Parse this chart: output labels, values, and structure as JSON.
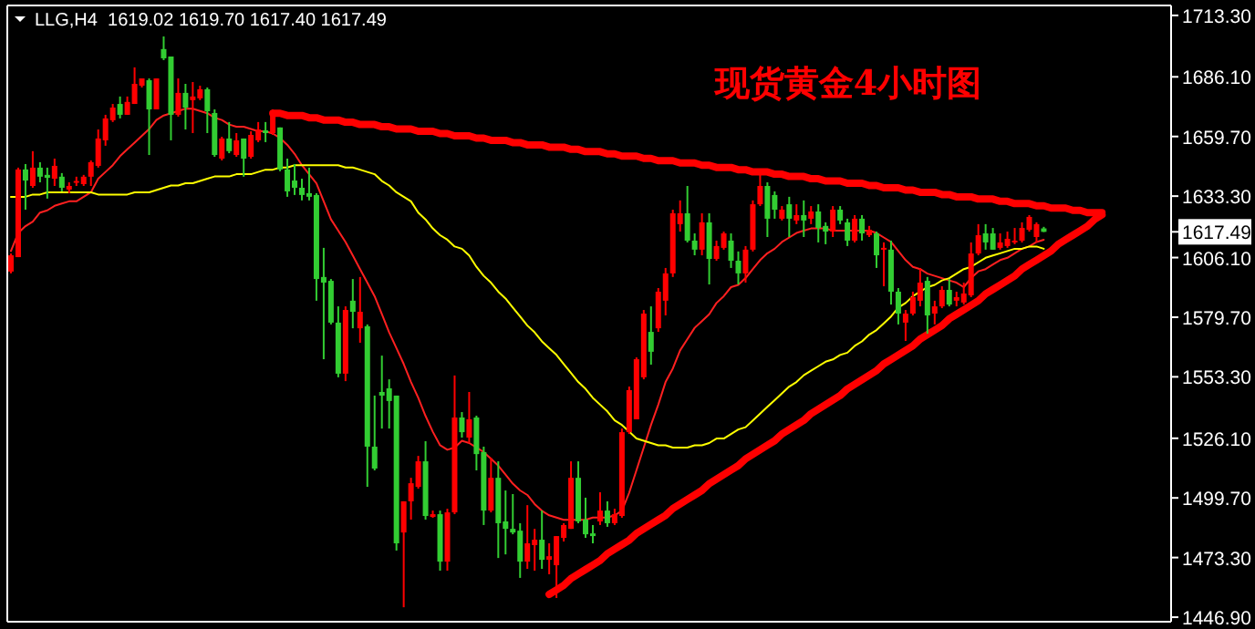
{
  "chart_data": {
    "type": "candlestick",
    "title": "现货黄金4小时图",
    "subtitle": "LLG,H4  1619.02 1619.70 1617.40 1617.49",
    "categories": [
      null,
      null,
      null,
      null,
      null,
      null,
      null,
      null,
      null,
      null,
      null,
      null,
      null,
      null,
      null,
      null,
      null,
      null,
      null,
      null,
      null,
      null,
      null,
      null,
      null,
      null,
      null,
      null,
      null,
      null,
      null,
      null,
      null,
      null,
      null,
      null,
      null,
      null,
      null,
      null,
      null,
      null,
      null,
      null,
      null,
      null,
      null,
      null,
      null,
      null,
      null,
      null,
      null,
      null,
      null,
      null,
      null,
      null,
      null,
      null,
      null,
      null,
      null,
      null,
      null,
      null,
      null,
      null,
      null,
      null,
      null,
      null,
      null,
      null,
      null,
      null,
      null,
      null,
      null,
      null,
      null,
      null,
      null,
      null,
      null,
      null,
      null,
      null,
      null,
      null,
      null,
      null,
      null,
      null,
      null,
      null,
      null,
      null,
      null,
      null,
      null,
      null,
      null,
      null,
      null,
      null,
      null,
      null,
      null,
      null,
      null,
      null,
      null,
      null,
      null,
      null,
      null,
      null,
      null,
      null,
      null,
      null,
      null,
      null,
      null,
      null,
      null,
      null,
      null,
      null,
      null,
      null,
      null,
      null,
      null,
      null,
      null,
      null,
      null,
      null,
      null,
      null,
      null,
      null,
      null,
      null,
      null,
      null,
      null,
      null,
      null,
      null,
      null,
      null,
      null,
      null,
      null,
      null,
      null,
      null
    ],
    "ohlc": [
      [
        1599.9,
        1607.9,
        1599.1,
        1607.1
      ],
      [
        1606.3,
        1645.9,
        1606.3,
        1645.1
      ],
      [
        1645.1,
        1647.5,
        1627.3,
        1640.2
      ],
      [
        1637.8,
        1653.2,
        1637.0,
        1645.9
      ],
      [
        1645.9,
        1648.3,
        1639.4,
        1641.9
      ],
      [
        1642.7,
        1645.9,
        1632.2,
        1641.4
      ],
      [
        1641.0,
        1649.9,
        1637.8,
        1646.7
      ],
      [
        1641.9,
        1643.5,
        1635.4,
        1637.0
      ],
      [
        1636.2,
        1639.4,
        1634.6,
        1637.8
      ],
      [
        1639.8,
        1641.9,
        1637.8,
        1640.0
      ],
      [
        1638.6,
        1642.7,
        1637.8,
        1641.9
      ],
      [
        1641.9,
        1649.1,
        1637.8,
        1648.3
      ],
      [
        1646.7,
        1662.8,
        1645.9,
        1658.8
      ],
      [
        1658.0,
        1669.3,
        1655.6,
        1667.7
      ],
      [
        1666.9,
        1674.1,
        1666.1,
        1672.5
      ],
      [
        1674.1,
        1677.4,
        1667.7,
        1669.3
      ],
      [
        1669.3,
        1677.4,
        1669.3,
        1675.0
      ],
      [
        1674.1,
        1690.3,
        1674.1,
        1683.0
      ],
      [
        1682.2,
        1685.4,
        1681.4,
        1685.4
      ],
      [
        1684.6,
        1685.4,
        1651.5,
        1671.7
      ],
      [
        1671.7,
        1685.4,
        1671.7,
        1685.4
      ],
      [
        1698.4,
        1704.0,
        1693.5,
        1694.3
      ],
      [
        1695.1,
        1695.1,
        1658.0,
        1669.3
      ],
      [
        1669.3,
        1685.4,
        1668.5,
        1679.0
      ],
      [
        1679.0,
        1683.0,
        1662.8,
        1672.5
      ],
      [
        1675.8,
        1683.8,
        1661.2,
        1677.4
      ],
      [
        1676.6,
        1682.2,
        1675.8,
        1680.6
      ],
      [
        1680.6,
        1681.4,
        1661.2,
        1670.9
      ],
      [
        1670.1,
        1671.7,
        1650.7,
        1651.5
      ],
      [
        1649.9,
        1659.6,
        1649.1,
        1658.8
      ],
      [
        1658.8,
        1666.1,
        1652.3,
        1653.2
      ],
      [
        1651.5,
        1661.2,
        1650.7,
        1658.0
      ],
      [
        1658.8,
        1658.8,
        1641.9,
        1649.9
      ],
      [
        1650.7,
        1662.0,
        1649.9,
        1660.4
      ],
      [
        1658.0,
        1666.1,
        1657.2,
        1662.8
      ],
      [
        1662.4,
        1666.1,
        1657.2,
        1661.2
      ],
      [
        1661.2,
        1671.7,
        1660.4,
        1670.1
      ],
      [
        1663.7,
        1663.7,
        1644.3,
        1645.1
      ],
      [
        1645.1,
        1649.9,
        1633.0,
        1635.4
      ],
      [
        1640.2,
        1647.5,
        1633.8,
        1637.0
      ],
      [
        1637.0,
        1641.0,
        1631.4,
        1633.8
      ],
      [
        1634.6,
        1645.9,
        1631.4,
        1633.0
      ],
      [
        1633.8,
        1634.6,
        1587.0,
        1596.6
      ],
      [
        1597.5,
        1610.4,
        1561.1,
        1595.0
      ],
      [
        1595.8,
        1596.6,
        1576.5,
        1577.3
      ],
      [
        1577.3,
        1584.5,
        1553.1,
        1554.7
      ],
      [
        1554.7,
        1584.5,
        1551.4,
        1582.9
      ],
      [
        1587.0,
        1596.6,
        1574.8,
        1582.1
      ],
      [
        1574.8,
        1597.5,
        1568.4,
        1582.1
      ],
      [
        1575.7,
        1576.5,
        1504.6,
        1522.4
      ],
      [
        1522.4,
        1545.0,
        1511.9,
        1512.7
      ],
      [
        1546.6,
        1562.7,
        1530.4,
        1545.0
      ],
      [
        1548.2,
        1552.2,
        1530.4,
        1542.6
      ],
      [
        1545.0,
        1545.0,
        1476.4,
        1479.6
      ],
      [
        1484.4,
        1498.2,
        1451.3,
        1498.2
      ],
      [
        1498.2,
        1508.6,
        1490.1,
        1506.2
      ],
      [
        1504.6,
        1518.3,
        1503.8,
        1515.9
      ],
      [
        1515.9,
        1524.8,
        1490.1,
        1491.7
      ],
      [
        1491.3,
        1494.1,
        1490.9,
        1492.5
      ],
      [
        1492.5,
        1494.1,
        1467.5,
        1471.5
      ],
      [
        1471.5,
        1494.9,
        1467.5,
        1493.3
      ],
      [
        1493.3,
        1553.9,
        1492.5,
        1535.3
      ],
      [
        1535.3,
        1537.7,
        1526.4,
        1528.8
      ],
      [
        1526.4,
        1546.6,
        1524.0,
        1534.5
      ],
      [
        1535.3,
        1536.1,
        1511.9,
        1519.1
      ],
      [
        1520.0,
        1522.4,
        1487.7,
        1494.1
      ],
      [
        1494.1,
        1517.5,
        1493.3,
        1508.6
      ],
      [
        1508.6,
        1515.9,
        1473.1,
        1488.5
      ],
      [
        1489.3,
        1503.0,
        1474.7,
        1486.0
      ],
      [
        1486.0,
        1501.4,
        1483.6,
        1484.4
      ],
      [
        1485.2,
        1488.5,
        1464.3,
        1471.5
      ],
      [
        1471.5,
        1496.5,
        1468.3,
        1479.6
      ],
      [
        1478.8,
        1486.0,
        1467.5,
        1481.2
      ],
      [
        1481.2,
        1494.1,
        1468.3,
        1472.3
      ],
      [
        1472.3,
        1479.6,
        1465.9,
        1473.9
      ],
      [
        1469.9,
        1482.8,
        1455.4,
        1482.8
      ],
      [
        1482.0,
        1488.5,
        1480.4,
        1487.7
      ],
      [
        1486.0,
        1515.9,
        1486.0,
        1508.6
      ],
      [
        1508.6,
        1515.9,
        1488.5,
        1489.3
      ],
      [
        1490.1,
        1499.8,
        1482.0,
        1483.6
      ],
      [
        1484.0,
        1487.7,
        1479.6,
        1482.8
      ],
      [
        1489.3,
        1502.2,
        1487.7,
        1494.1
      ],
      [
        1494.1,
        1498.2,
        1486.9,
        1488.5
      ],
      [
        1488.5,
        1494.9,
        1487.7,
        1492.5
      ],
      [
        1491.7,
        1530.4,
        1490.9,
        1528.8
      ],
      [
        1528.8,
        1549.0,
        1528.0,
        1547.4
      ],
      [
        1534.5,
        1561.9,
        1534.5,
        1561.1
      ],
      [
        1553.1,
        1582.9,
        1552.2,
        1581.3
      ],
      [
        1573.2,
        1584.5,
        1558.7,
        1564.4
      ],
      [
        1574.8,
        1592.6,
        1573.2,
        1591.0
      ],
      [
        1587.0,
        1601.5,
        1580.5,
        1599.1
      ],
      [
        1599.1,
        1627.3,
        1597.5,
        1625.7
      ],
      [
        1620.9,
        1631.4,
        1617.6,
        1625.7
      ],
      [
        1625.7,
        1637.8,
        1612.8,
        1613.6
      ],
      [
        1613.6,
        1616.8,
        1607.1,
        1609.6
      ],
      [
        1609.6,
        1625.7,
        1607.1,
        1621.7
      ],
      [
        1621.7,
        1625.7,
        1594.2,
        1605.5
      ],
      [
        1605.5,
        1613.6,
        1604.7,
        1611.2
      ],
      [
        1610.4,
        1617.6,
        1609.6,
        1616.8
      ],
      [
        1613.6,
        1616.8,
        1601.5,
        1604.7
      ],
      [
        1604.7,
        1608.8,
        1594.2,
        1599.1
      ],
      [
        1599.1,
        1611.2,
        1595.0,
        1609.6
      ],
      [
        1609.6,
        1631.4,
        1608.8,
        1629.7
      ],
      [
        1629.7,
        1643.5,
        1628.9,
        1637.8
      ],
      [
        1637.8,
        1639.4,
        1615.2,
        1623.3
      ],
      [
        1633.8,
        1635.4,
        1623.3,
        1627.3
      ],
      [
        1623.3,
        1628.9,
        1622.5,
        1627.3
      ],
      [
        1629.7,
        1633.0,
        1615.2,
        1623.3
      ],
      [
        1622.5,
        1629.7,
        1620.9,
        1624.9
      ],
      [
        1624.9,
        1631.4,
        1615.2,
        1622.5
      ],
      [
        1623.3,
        1628.9,
        1620.9,
        1626.5
      ],
      [
        1626.5,
        1629.7,
        1612.8,
        1619.2
      ],
      [
        1620.1,
        1621.7,
        1612.0,
        1617.6
      ],
      [
        1617.6,
        1628.9,
        1615.2,
        1627.3
      ],
      [
        1627.3,
        1628.9,
        1620.9,
        1622.5
      ],
      [
        1621.7,
        1623.3,
        1611.2,
        1613.6
      ],
      [
        1613.6,
        1624.9,
        1612.8,
        1623.3
      ],
      [
        1623.3,
        1624.9,
        1613.6,
        1616.8
      ],
      [
        1616.0,
        1620.1,
        1615.2,
        1618.4
      ],
      [
        1616.8,
        1617.6,
        1601.5,
        1607.1
      ],
      [
        1609.6,
        1612.8,
        1593.4,
        1610.4
      ],
      [
        1609.6,
        1613.6,
        1585.3,
        1591.0
      ],
      [
        1591.0,
        1592.6,
        1576.5,
        1581.3
      ],
      [
        1577.3,
        1582.9,
        1569.2,
        1581.3
      ],
      [
        1581.3,
        1591.0,
        1580.5,
        1588.6
      ],
      [
        1587.0,
        1601.5,
        1584.5,
        1595.0
      ],
      [
        1595.8,
        1597.5,
        1572.4,
        1580.5
      ],
      [
        1581.3,
        1587.0,
        1576.5,
        1584.5
      ],
      [
        1584.5,
        1593.4,
        1583.7,
        1591.8
      ],
      [
        1591.8,
        1596.6,
        1584.5,
        1585.3
      ],
      [
        1587.0,
        1591.0,
        1584.5,
        1588.6
      ],
      [
        1586.2,
        1595.0,
        1585.3,
        1590.2
      ],
      [
        1589.4,
        1612.8,
        1588.6,
        1607.9
      ],
      [
        1607.9,
        1620.9,
        1607.1,
        1616.0
      ],
      [
        1616.8,
        1620.9,
        1609.6,
        1612.8
      ],
      [
        1616.8,
        1619.2,
        1609.6,
        1609.6
      ],
      [
        1610.4,
        1616.8,
        1609.6,
        1612.8
      ],
      [
        1611.2,
        1617.6,
        1610.4,
        1614.4
      ],
      [
        1612.8,
        1619.2,
        1612.0,
        1613.6
      ],
      [
        1613.6,
        1621.7,
        1612.8,
        1619.2
      ],
      [
        1618.4,
        1624.9,
        1617.6,
        1624.1
      ],
      [
        1615.2,
        1621.7,
        1612.8,
        1620.9
      ],
      [
        1619.02,
        1619.7,
        1617.4,
        1617.49
      ],
      null,
      null,
      null,
      null,
      null,
      null,
      null,
      null,
      null,
      null,
      null,
      null,
      null,
      null,
      null,
      null,
      null
    ],
    "colors": [
      "#ff0000",
      "#ff0000",
      "#32cd32",
      "#ff0000",
      "#32cd32",
      "#32cd32",
      "#ff0000",
      "#32cd32",
      "#ff0000",
      "#ff0000",
      "#ff0000",
      "#ff0000",
      "#ff0000",
      "#ff0000",
      "#ff0000",
      "#32cd32",
      "#ff0000",
      "#ff0000",
      "#ff0000",
      "#32cd32",
      "#ff0000",
      "#32cd32",
      "#32cd32",
      "#ff0000",
      "#32cd32",
      "#ff0000",
      "#ff0000",
      "#32cd32",
      "#32cd32",
      "#ff0000",
      "#32cd32",
      "#ff0000",
      "#32cd32",
      "#ff0000",
      "#ff0000",
      "#32cd32",
      "#ff0000",
      "#32cd32",
      "#32cd32",
      "#32cd32",
      "#32cd32",
      "#32cd32",
      "#32cd32",
      "#32cd32",
      "#32cd32",
      "#32cd32",
      "#ff0000",
      "#32cd32",
      "#ff0000",
      "#32cd32",
      "#32cd32",
      "#32cd32",
      "#32cd32",
      "#32cd32",
      "#ff0000",
      "#ff0000",
      "#ff0000",
      "#32cd32",
      "#ff0000",
      "#32cd32",
      "#ff0000",
      "#ff0000",
      "#32cd32",
      "#ff0000",
      "#32cd32",
      "#32cd32",
      "#ff0000",
      "#32cd32",
      "#32cd32",
      "#32cd32",
      "#32cd32",
      "#ff0000",
      "#ff0000",
      "#32cd32",
      "#ff0000",
      "#ff0000",
      "#ff0000",
      "#ff0000",
      "#32cd32",
      "#32cd32",
      "#32cd32",
      "#ff0000",
      "#32cd32",
      "#ff0000",
      "#ff0000",
      "#ff0000",
      "#ff0000",
      "#ff0000",
      "#32cd32",
      "#ff0000",
      "#ff0000",
      "#ff0000",
      "#ff0000",
      "#32cd32",
      "#32cd32",
      "#ff0000",
      "#32cd32",
      "#ff0000",
      "#ff0000",
      "#32cd32",
      "#32cd32",
      "#ff0000",
      "#ff0000",
      "#ff0000",
      "#32cd32",
      "#32cd32",
      "#ff0000",
      "#32cd32",
      "#ff0000",
      "#32cd32",
      "#ff0000",
      "#32cd32",
      "#32cd32",
      "#ff0000",
      "#32cd32",
      "#32cd32",
      "#ff0000",
      "#32cd32",
      "#ff0000",
      "#32cd32",
      "#ff0000",
      "#32cd32",
      "#32cd32",
      "#ff0000",
      "#ff0000",
      "#ff0000",
      "#32cd32",
      "#ff0000",
      "#ff0000",
      "#32cd32",
      "#ff0000",
      "#ff0000",
      "#ff0000",
      "#ff0000",
      "#32cd32",
      "#32cd32",
      "#ff0000",
      "#ff0000",
      "#ff0000",
      "#ff0000",
      "#ff0000",
      "#ff0000",
      "#32cd32",
      null,
      null,
      null,
      null,
      null,
      null,
      null,
      null,
      null,
      null,
      null,
      null,
      null,
      null,
      null,
      null,
      null
    ],
    "ylim": [
      1444.9,
      1717.7
    ],
    "yticks": [
      {
        "value": 1713.3,
        "label": "1713.30"
      },
      {
        "value": 1686.1,
        "label": "1686.10"
      },
      {
        "value": 1659.7,
        "label": "1659.70"
      },
      {
        "value": 1633.3,
        "label": "1633.30"
      },
      {
        "value": 1617.49,
        "label": "1617.49"
      },
      {
        "value": 1606.1,
        "label": "1606.10"
      },
      {
        "value": 1579.7,
        "label": "1579.70"
      },
      {
        "value": 1553.3,
        "label": "1553.30"
      },
      {
        "value": 1526.1,
        "label": "1526.10"
      },
      {
        "value": 1499.7,
        "label": "1499.70"
      },
      {
        "value": 1473.3,
        "label": "1473.30"
      },
      {
        "value": 1446.9,
        "label": "1446.90"
      }
    ],
    "series": [
      {
        "type": "line",
        "color": "#ff2020",
        "values": [
          1609,
          1617,
          1620,
          1622,
          1626,
          1627,
          1629,
          1630,
          1631,
          1631,
          1633,
          1635,
          1641,
          1644,
          1647,
          1651,
          1654,
          1657,
          1660,
          1663,
          1667,
          1669,
          1670,
          1671,
          1672,
          1672,
          1671,
          1670,
          1668,
          1667,
          1665,
          1664,
          1664,
          1663,
          1662,
          1662,
          1661,
          1659,
          1656,
          1652,
          1647,
          1643,
          1639,
          1631,
          1623,
          1618,
          1613,
          1607,
          1601,
          1595,
          1589,
          1581,
          1573,
          1566,
          1559,
          1551,
          1544,
          1536,
          1529,
          1523,
          1521,
          1522,
          1525,
          1524,
          1522,
          1520,
          1517,
          1514,
          1510,
          1506,
          1503,
          1501,
          1497,
          1494,
          1492,
          1491,
          1490,
          1490,
          1490,
          1490,
          1491,
          1491,
          1491,
          1492,
          1494,
          1502,
          1512,
          1522,
          1532,
          1541,
          1551,
          1557,
          1565,
          1570,
          1575,
          1578,
          1581,
          1586,
          1589,
          1593,
          1594,
          1597,
          1601,
          1605,
          1608,
          1610,
          1613,
          1615,
          1617,
          1618,
          1619,
          1619,
          1619,
          1618,
          1618,
          1618,
          1618,
          1618,
          1618,
          1617,
          1615,
          1613,
          1609,
          1605,
          1602,
          1601,
          1599,
          1598,
          1597,
          1596,
          1595,
          1593,
          1597,
          1600,
          1601,
          1603,
          1605,
          1606,
          1608,
          1610,
          1611,
          1613,
          1614,
          null,
          null,
          null,
          null,
          null,
          null,
          null,
          null,
          null,
          null,
          null,
          null,
          null,
          null,
          null,
          null,
          null
        ]
      },
      {
        "type": "line",
        "color": "#ffff00",
        "values": [
          1633,
          1633,
          1633,
          1634,
          1634,
          1635,
          1635,
          1635,
          1635,
          1635,
          1635,
          1635,
          1634,
          1634,
          1634,
          1634,
          1634,
          1635,
          1635,
          1635,
          1636,
          1637,
          1638,
          1638,
          1639,
          1639,
          1640,
          1641,
          1642,
          1642,
          1642,
          1643,
          1643,
          1643,
          1644,
          1645,
          1645,
          1646,
          1646,
          1647,
          1647,
          1647,
          1647,
          1647,
          1647,
          1647,
          1646,
          1646,
          1645,
          1644,
          1643,
          1640,
          1638,
          1635,
          1633,
          1631,
          1626,
          1623,
          1619,
          1616,
          1614,
          1611,
          1610,
          1607,
          1602,
          1598,
          1595,
          1591,
          1588,
          1584,
          1580,
          1576,
          1573,
          1569,
          1566,
          1563,
          1559,
          1555,
          1551,
          1548,
          1544,
          1541,
          1538,
          1534,
          1532,
          1529,
          1526,
          1525,
          1524,
          1523,
          1523,
          1522,
          1522,
          1522,
          1523,
          1523,
          1524,
          1526,
          1526,
          1528,
          1530,
          1531,
          1534,
          1537,
          1540,
          1543,
          1546,
          1549,
          1551,
          1554,
          1556,
          1558,
          1560,
          1561,
          1563,
          1564,
          1567,
          1569,
          1572,
          1574,
          1577,
          1580,
          1584,
          1586,
          1589,
          1591,
          1593,
          1594,
          1596,
          1597,
          1599,
          1601,
          1602,
          1604,
          1606,
          1607,
          1608,
          1609,
          1610,
          1610,
          1611,
          1611,
          1610,
          null,
          null,
          null,
          null,
          null,
          null,
          null,
          null,
          null,
          null,
          null,
          null,
          null,
          null,
          null,
          null,
          null
        ]
      },
      {
        "type": "line",
        "color": "#ff0000",
        "values": [
          null,
          null,
          null,
          null,
          null,
          null,
          null,
          null,
          null,
          null,
          null,
          null,
          null,
          null,
          null,
          null,
          null,
          null,
          null,
          null,
          null,
          null,
          null,
          null,
          null,
          null,
          null,
          null,
          null,
          null,
          null,
          null,
          null,
          null,
          null,
          null,
          1670,
          1670,
          1669,
          1669,
          1669,
          1668,
          1668,
          1667,
          1667,
          1667,
          1666,
          1666,
          1665,
          1665,
          1665,
          1664,
          1664,
          1663,
          1663,
          1663,
          1662,
          1662,
          1662,
          1661,
          1661,
          1660,
          1660,
          1660,
          1659,
          1659,
          1658,
          1658,
          1658,
          1657,
          1657,
          1656,
          1656,
          1656,
          1655,
          1655,
          1655,
          1654,
          1654,
          1653,
          1653,
          1653,
          1652,
          1652,
          1651,
          1651,
          1651,
          1650,
          1650,
          1649,
          1649,
          1649,
          1648,
          1648,
          1648,
          1647,
          1647,
          1646,
          1646,
          1646,
          1645,
          1645,
          1644,
          1644,
          1644,
          1643,
          1643,
          1642,
          1642,
          1642,
          1641,
          1641,
          1640,
          1640,
          1640,
          1639,
          1639,
          1639,
          1638,
          1638,
          1637,
          1637,
          1637,
          1636,
          1636,
          1635,
          1635,
          1635,
          1634,
          1634,
          1633,
          1633,
          1633,
          1632,
          1632,
          1632,
          1631,
          1631,
          1630,
          1630,
          1630,
          1629,
          1629,
          1628,
          1628,
          1628,
          1627,
          1627,
          1626,
          1626,
          1626,
          null,
          null,
          null,
          null,
          null,
          null,
          null,
          null,
          null
        ]
      },
      {
        "type": "line",
        "color": "#ff0000",
        "values": [
          null,
          null,
          null,
          null,
          null,
          null,
          null,
          null,
          null,
          null,
          null,
          null,
          null,
          null,
          null,
          null,
          null,
          null,
          null,
          null,
          null,
          null,
          null,
          null,
          null,
          null,
          null,
          null,
          null,
          null,
          null,
          null,
          null,
          null,
          null,
          null,
          null,
          null,
          null,
          null,
          null,
          null,
          null,
          null,
          null,
          null,
          null,
          null,
          null,
          null,
          null,
          null,
          null,
          null,
          null,
          null,
          null,
          null,
          null,
          null,
          null,
          null,
          null,
          null,
          null,
          null,
          null,
          null,
          null,
          null,
          null,
          null,
          null,
          null,
          1457,
          1459,
          1461,
          1464,
          1466,
          1468,
          1470,
          1472,
          1475,
          1477,
          1479,
          1481,
          1484,
          1486,
          1488,
          1490,
          1492,
          1495,
          1497,
          1499,
          1501,
          1503,
          1506,
          1508,
          1510,
          1512,
          1514,
          1517,
          1519,
          1521,
          1523,
          1525,
          1528,
          1530,
          1532,
          1534,
          1537,
          1539,
          1541,
          1543,
          1545,
          1548,
          1550,
          1552,
          1554,
          1556,
          1559,
          1561,
          1563,
          1565,
          1567,
          1570,
          1572,
          1574,
          1576,
          1579,
          1581,
          1583,
          1585,
          1587,
          1590,
          1592,
          1594,
          1596,
          1598,
          1601,
          1603,
          1605,
          1607,
          1609,
          1612,
          1614,
          1616,
          1618,
          1620,
          1623,
          1625,
          null,
          null,
          null,
          null,
          null,
          null,
          null,
          null,
          null
        ]
      }
    ]
  }
}
